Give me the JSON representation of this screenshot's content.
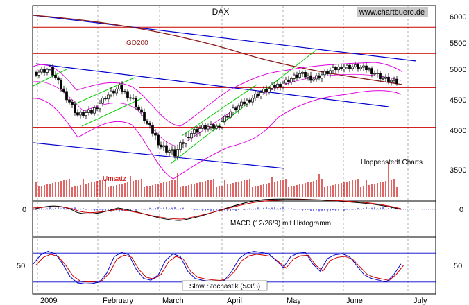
{
  "chart_data": [
    {
      "panel": "price",
      "type": "candlestick",
      "title": "DAX",
      "watermark": "www.chartbuero.de",
      "annotation_right": "Hoppenstedt Charts",
      "moving_average_label": "GD200",
      "volume_label": "Umsatz",
      "y_ticks": [
        "6000",
        "5500",
        "5000",
        "4500",
        "4000",
        "3500"
      ],
      "ylim": [
        3200,
        6200
      ],
      "x_ticks": [
        "2009",
        "February",
        "March",
        "April",
        "May",
        "June",
        "July"
      ],
      "horizontal_levels": [
        5800,
        5300,
        4700,
        4050
      ],
      "close_approx": [
        [
          0,
          4950
        ],
        [
          5,
          5010
        ],
        [
          10,
          4620
        ],
        [
          15,
          4250
        ],
        [
          20,
          4300
        ],
        [
          25,
          4550
        ],
        [
          30,
          4700
        ],
        [
          35,
          4500
        ],
        [
          40,
          4100
        ],
        [
          45,
          3800
        ],
        [
          50,
          3700
        ],
        [
          55,
          3950
        ],
        [
          60,
          4050
        ],
        [
          65,
          4050
        ],
        [
          70,
          4300
        ],
        [
          75,
          4450
        ],
        [
          80,
          4600
        ],
        [
          85,
          4700
        ],
        [
          90,
          4800
        ],
        [
          95,
          4920
        ],
        [
          100,
          4850
        ],
        [
          105,
          4950
        ],
        [
          110,
          5050
        ],
        [
          115,
          5050
        ],
        [
          120,
          5000
        ],
        [
          125,
          4850
        ],
        [
          130,
          4780
        ]
      ],
      "series": [
        {
          "name": "GD200",
          "color": "#8b1a1a"
        },
        {
          "name": "Bollinger",
          "color": "#e000e0"
        }
      ]
    },
    {
      "panel": "macd",
      "type": "line",
      "title": "MACD (12/26/9) mit Histogramm",
      "y_ticks": [
        "0"
      ],
      "series": [
        {
          "name": "MACD",
          "color": "#000000"
        },
        {
          "name": "Signal",
          "color": "#cc0000"
        }
      ]
    },
    {
      "panel": "stochastic",
      "type": "line",
      "title": "Slow Stochastik (5/3/3)",
      "y_ticks": [
        "50"
      ],
      "ylim": [
        0,
        100
      ],
      "series": [
        {
          "name": "%K",
          "color": "#0000cc"
        },
        {
          "name": "%D",
          "color": "#cc0000"
        }
      ]
    }
  ]
}
